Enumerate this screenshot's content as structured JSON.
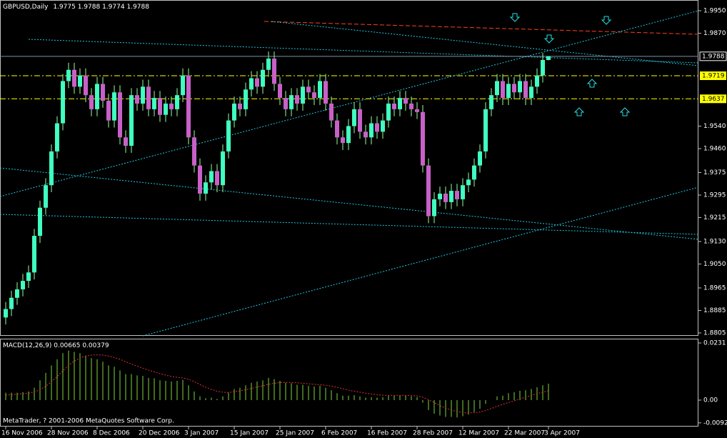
{
  "chart_data": {
    "type": "candlestick",
    "symbol": "GBPUSD,Daily",
    "copyright": "MetaTrader, ? 2001-2006 MetaQuotes Software Corp.",
    "bull_color": "#40ffc0",
    "bear_color": "#c860c8",
    "categories": [
      "16 Nov 2006",
      null,
      null,
      null,
      null,
      null,
      null,
      null,
      "28 Nov 2006",
      null,
      null,
      null,
      null,
      null,
      null,
      null,
      "8 Dec 2006",
      null,
      null,
      null,
      null,
      null,
      null,
      null,
      "20 Dec 2006",
      null,
      null,
      null,
      null,
      null,
      null,
      null,
      "3 Jan 2007",
      null,
      null,
      null,
      null,
      null,
      null,
      null,
      "15 Jan 2007",
      null,
      null,
      null,
      null,
      null,
      null,
      null,
      "25 Jan 2007",
      null,
      null,
      null,
      null,
      null,
      null,
      null,
      "6 Feb 2007",
      null,
      null,
      null,
      null,
      null,
      null,
      null,
      "16 Feb 2007",
      null,
      null,
      null,
      null,
      null,
      null,
      null,
      "28 Feb 2007",
      null,
      null,
      null,
      null,
      null,
      null,
      null,
      "12 Mar 2007",
      null,
      null,
      null,
      null,
      null,
      null,
      null,
      "22 Mar 2007",
      null,
      null,
      null,
      null,
      null,
      null,
      "3 Apr 2007"
    ],
    "candles": [
      [
        1.886,
        1.8915,
        1.8835,
        1.889
      ],
      [
        1.889,
        1.8955,
        1.8865,
        1.893
      ],
      [
        1.893,
        1.8985,
        1.8905,
        1.896
      ],
      [
        1.896,
        1.9015,
        1.8935,
        1.899
      ],
      [
        1.899,
        1.9045,
        1.8965,
        1.902
      ],
      [
        1.902,
        1.9175,
        1.8995,
        1.915
      ],
      [
        1.915,
        1.9275,
        1.9125,
        1.925
      ],
      [
        1.925,
        1.9355,
        1.9225,
        1.933
      ],
      [
        1.933,
        1.9475,
        1.9305,
        1.945
      ],
      [
        1.945,
        1.9575,
        1.9425,
        1.955
      ],
      [
        1.955,
        1.9725,
        1.9525,
        1.97
      ],
      [
        1.97,
        1.9765,
        1.9675,
        1.974
      ],
      [
        1.974,
        1.9765,
        1.9655,
        1.968
      ],
      [
        1.968,
        1.9745,
        1.9655,
        1.972
      ],
      [
        1.972,
        1.9745,
        1.9625,
        1.965
      ],
      [
        1.965,
        1.9675,
        1.9575,
        1.96
      ],
      [
        1.96,
        1.9715,
        1.9575,
        1.969
      ],
      [
        1.969,
        1.9715,
        1.9605,
        1.963
      ],
      [
        1.963,
        1.9655,
        1.9535,
        1.956
      ],
      [
        1.956,
        1.9685,
        1.9535,
        1.966
      ],
      [
        1.966,
        1.9685,
        1.9475,
        1.95
      ],
      [
        1.95,
        1.9525,
        1.9445,
        1.947
      ],
      [
        1.947,
        1.9675,
        1.9445,
        1.965
      ],
      [
        1.965,
        1.9675,
        1.9595,
        1.962
      ],
      [
        1.962,
        1.9705,
        1.9595,
        1.968
      ],
      [
        1.968,
        1.9705,
        1.9575,
        1.96
      ],
      [
        1.96,
        1.9665,
        1.9575,
        1.964
      ],
      [
        1.964,
        1.9665,
        1.9555,
        1.958
      ],
      [
        1.958,
        1.9645,
        1.9555,
        1.962
      ],
      [
        1.962,
        1.9645,
        1.9575,
        1.96
      ],
      [
        1.96,
        1.9675,
        1.9575,
        1.965
      ],
      [
        1.965,
        1.9745,
        1.9625,
        1.972
      ],
      [
        1.972,
        1.9745,
        1.9475,
        1.95
      ],
      [
        1.95,
        1.9525,
        1.9375,
        1.94
      ],
      [
        1.94,
        1.9425,
        1.9275,
        1.93
      ],
      [
        1.93,
        1.9365,
        1.9275,
        1.934
      ],
      [
        1.934,
        1.9405,
        1.9315,
        1.938
      ],
      [
        1.938,
        1.9405,
        1.9305,
        1.933
      ],
      [
        1.933,
        1.9475,
        1.9305,
        1.945
      ],
      [
        1.945,
        1.9585,
        1.9425,
        1.956
      ],
      [
        1.956,
        1.9645,
        1.9535,
        1.962
      ],
      [
        1.962,
        1.9645,
        1.9575,
        1.96
      ],
      [
        1.96,
        1.9695,
        1.9575,
        1.967
      ],
      [
        1.967,
        1.9735,
        1.9645,
        1.971
      ],
      [
        1.971,
        1.9735,
        1.9655,
        1.968
      ],
      [
        1.968,
        1.9765,
        1.9655,
        1.974
      ],
      [
        1.974,
        1.9805,
        1.9715,
        1.978
      ],
      [
        1.978,
        1.9805,
        1.9665,
        1.969
      ],
      [
        1.969,
        1.9715,
        1.9615,
        1.964
      ],
      [
        1.964,
        1.9665,
        1.9575,
        1.96
      ],
      [
        1.96,
        1.9675,
        1.9575,
        1.965
      ],
      [
        1.965,
        1.9675,
        1.9595,
        1.962
      ],
      [
        1.962,
        1.9705,
        1.9595,
        1.968
      ],
      [
        1.968,
        1.9705,
        1.9635,
        1.966
      ],
      [
        1.966,
        1.9685,
        1.9615,
        1.964
      ],
      [
        1.964,
        1.9725,
        1.9615,
        1.97
      ],
      [
        1.97,
        1.9725,
        1.9595,
        1.962
      ],
      [
        1.962,
        1.9645,
        1.9535,
        1.956
      ],
      [
        1.956,
        1.9585,
        1.9475,
        1.95
      ],
      [
        1.95,
        1.9525,
        1.9455,
        1.948
      ],
      [
        1.948,
        1.9565,
        1.9455,
        1.954
      ],
      [
        1.954,
        1.9625,
        1.9515,
        1.96
      ],
      [
        1.96,
        1.9625,
        1.9495,
        1.952
      ],
      [
        1.952,
        1.9545,
        1.9475,
        1.95
      ],
      [
        1.95,
        1.9575,
        1.9475,
        1.955
      ],
      [
        1.955,
        1.9575,
        1.9495,
        1.952
      ],
      [
        1.952,
        1.9585,
        1.9495,
        1.956
      ],
      [
        1.956,
        1.9645,
        1.9535,
        1.962
      ],
      [
        1.962,
        1.9645,
        1.9575,
        1.96
      ],
      [
        1.96,
        1.9665,
        1.9575,
        1.964
      ],
      [
        1.964,
        1.9665,
        1.9595,
        1.962
      ],
      [
        1.962,
        1.9645,
        1.9575,
        1.96
      ],
      [
        1.96,
        1.9625,
        1.9565,
        1.959
      ],
      [
        1.959,
        1.9615,
        1.9375,
        1.94
      ],
      [
        1.94,
        1.9425,
        1.9195,
        1.922
      ],
      [
        1.922,
        1.9305,
        1.9195,
        1.928
      ],
      [
        1.928,
        1.9325,
        1.9255,
        1.93
      ],
      [
        1.93,
        1.9325,
        1.9245,
        1.927
      ],
      [
        1.927,
        1.9335,
        1.9245,
        1.931
      ],
      [
        1.931,
        1.9335,
        1.9255,
        1.928
      ],
      [
        1.928,
        1.9355,
        1.9255,
        1.933
      ],
      [
        1.933,
        1.9375,
        1.9305,
        1.935
      ],
      [
        1.935,
        1.9425,
        1.9325,
        1.94
      ],
      [
        1.94,
        1.9475,
        1.9375,
        1.945
      ],
      [
        1.945,
        1.9625,
        1.9425,
        1.96
      ],
      [
        1.96,
        1.9675,
        1.9575,
        1.965
      ],
      [
        1.965,
        1.9725,
        1.9625,
        1.97
      ],
      [
        1.97,
        1.9725,
        1.9615,
        1.964
      ],
      [
        1.964,
        1.9715,
        1.9615,
        1.969
      ],
      [
        1.969,
        1.9715,
        1.9635,
        1.966
      ],
      [
        1.966,
        1.9725,
        1.9635,
        1.97
      ],
      [
        1.97,
        1.9725,
        1.9615,
        1.964
      ],
      [
        1.964,
        1.9705,
        1.9615,
        1.968
      ],
      [
        1.968,
        1.9745,
        1.9655,
        1.972
      ],
      [
        1.972,
        1.98,
        1.9695,
        1.9775
      ],
      [
        1.9775,
        1.9788,
        1.9774,
        1.9788
      ]
    ],
    "ylim": [
      1.87948,
      1.99881
    ],
    "yticks": [
      1.8805,
      1.8885,
      1.8965,
      {
        "value": 1.905,
        "label": "1.9050"
      },
      {
        "value": 1.913,
        "label": "1.9130"
      },
      1.9215,
      1.9295,
      1.9375,
      {
        "value": 1.946,
        "label": "1.9460"
      },
      {
        "value": 1.954,
        "label": "1.9540"
      },
      {
        "value": 1.987,
        "label": "1.9870"
      },
      {
        "value": 1.995,
        "label": "1.9950"
      }
    ],
    "levels": [
      {
        "value": 1.9719,
        "color": "#ffff00"
      },
      {
        "value": 1.9637,
        "color": "#ffff00"
      }
    ],
    "macd": {
      "title": "MACD(12,26,9)",
      "hist_color": "#7cd63a",
      "signal_color": "#e03030",
      "ylim": [
        -0.01069,
        0.02483
      ],
      "yticks": [
        -0.0092,
        {
          "value": 0,
          "label": "0.00"
        },
        0.0231
      ],
      "hist": [
        0.003,
        0.003,
        0.003,
        0.0032,
        0.0035,
        0.005,
        0.008,
        0.011,
        0.014,
        0.0165,
        0.019,
        0.02,
        0.0195,
        0.019,
        0.018,
        0.017,
        0.0165,
        0.0155,
        0.014,
        0.0135,
        0.012,
        0.0105,
        0.0105,
        0.01,
        0.0098,
        0.009,
        0.0088,
        0.008,
        0.0078,
        0.0075,
        0.0078,
        0.0082,
        0.006,
        0.0035,
        0.0015,
        0.0008,
        0.001,
        0.0005,
        0.0015,
        0.003,
        0.0045,
        0.005,
        0.006,
        0.007,
        0.0075,
        0.008,
        0.009,
        0.0085,
        0.0078,
        0.007,
        0.0068,
        0.0062,
        0.0062,
        0.0058,
        0.0055,
        0.0058,
        0.005,
        0.004,
        0.0028,
        0.0018,
        0.0018,
        0.002,
        0.0015,
        0.001,
        0.0012,
        0.001,
        0.0012,
        0.0018,
        0.0018,
        0.002,
        0.0018,
        0.0015,
        0.0012,
        -0.001,
        -0.004,
        -0.0055,
        -0.0062,
        -0.0068,
        -0.0068,
        -0.007,
        -0.0065,
        -0.0058,
        -0.0048,
        -0.0035,
        -0.0015,
        0.0,
        0.0015,
        0.0018,
        0.0028,
        0.0032,
        0.0038,
        0.004,
        0.0045,
        0.0052,
        0.006,
        0.00665
      ],
      "signal": [
        0.002,
        0.0022,
        0.0024,
        0.0026,
        0.0028,
        0.0033,
        0.0042,
        0.0056,
        0.0074,
        0.0095,
        0.0118,
        0.014,
        0.0158,
        0.017,
        0.0178,
        0.0182,
        0.0183,
        0.0182,
        0.0178,
        0.0172,
        0.0165,
        0.0155,
        0.0146,
        0.0137,
        0.0129,
        0.0121,
        0.0114,
        0.0107,
        0.0101,
        0.0096,
        0.0092,
        0.009,
        0.0084,
        0.0075,
        0.0063,
        0.0052,
        0.0043,
        0.0036,
        0.0032,
        0.0031,
        0.0034,
        0.0037,
        0.0042,
        0.0047,
        0.0053,
        0.0058,
        0.0064,
        0.0068,
        0.0071,
        0.0072,
        0.0071,
        0.007,
        0.0068,
        0.0066,
        0.0064,
        0.0062,
        0.006,
        0.0057,
        0.0052,
        0.0046,
        0.004,
        0.0036,
        0.0032,
        0.0028,
        0.0025,
        0.0022,
        0.002,
        0.0019,
        0.0019,
        0.0019,
        0.0019,
        0.0018,
        0.0017,
        0.0012,
        0.0002,
        -0.001,
        -0.0022,
        -0.0032,
        -0.004,
        -0.0046,
        -0.005,
        -0.0052,
        -0.0051,
        -0.0048,
        -0.0042,
        -0.0034,
        -0.0025,
        -0.0017,
        -0.001,
        -0.0003,
        0.0005,
        0.0012,
        0.0019,
        0.0026,
        0.0032,
        0.00379
      ]
    }
  }
}
